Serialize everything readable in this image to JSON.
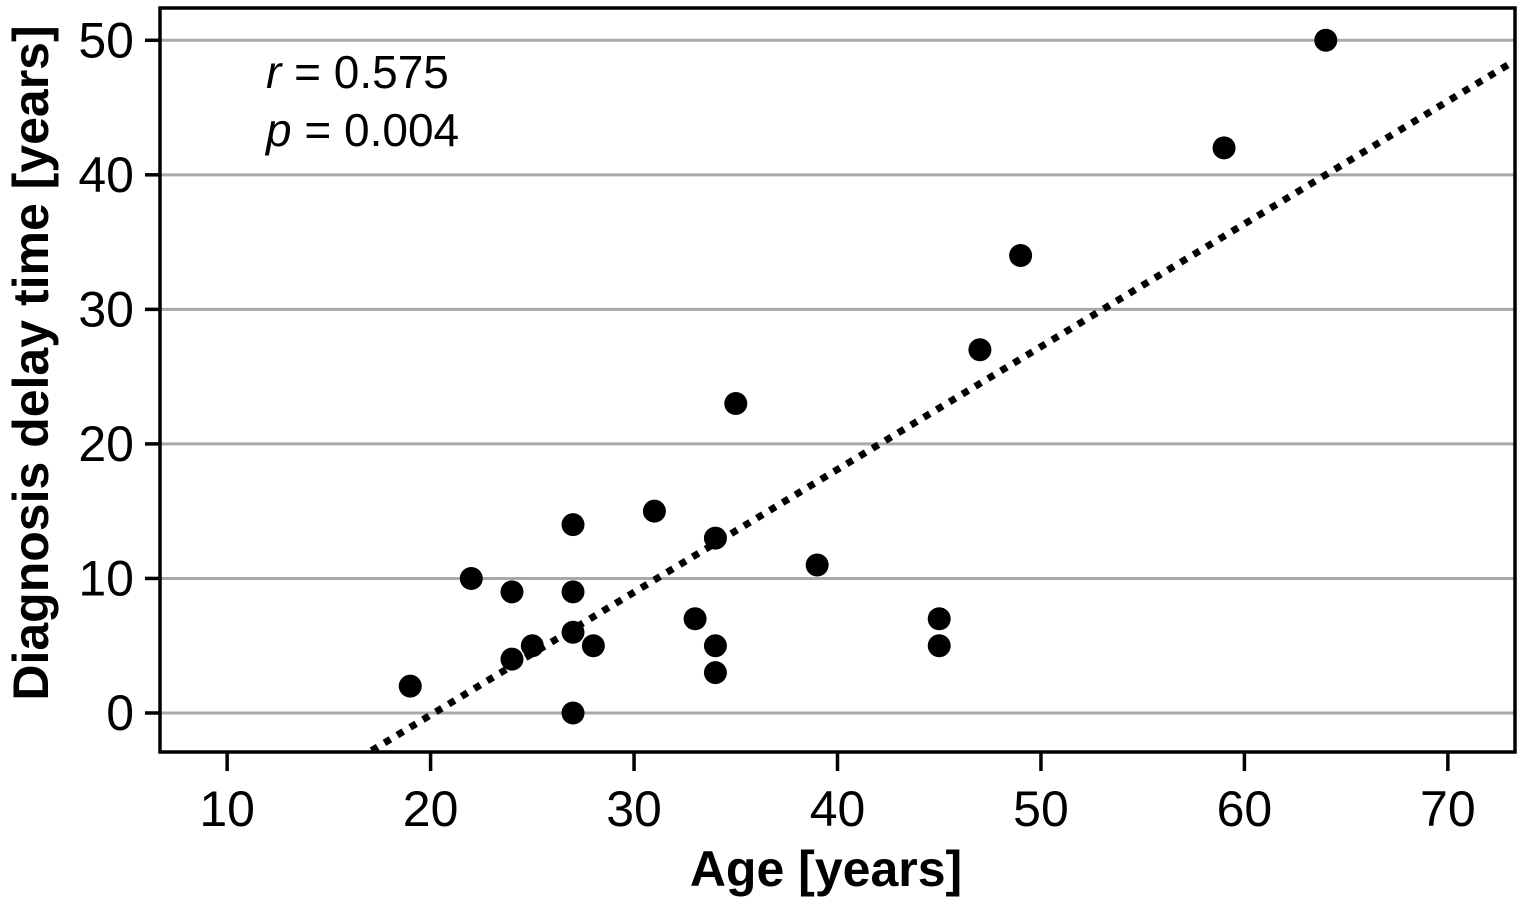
{
  "chart_data": {
    "type": "scatter",
    "title": "",
    "xlabel": "Age [years]",
    "ylabel": "Diagnosis delay time [years]",
    "xlim": [
      6.7,
      73.3
    ],
    "ylim": [
      -2.9,
      52.4
    ],
    "x_ticks": [
      10,
      20,
      30,
      40,
      50,
      60,
      70
    ],
    "y_ticks": [
      0,
      10,
      20,
      30,
      40,
      50
    ],
    "grid": "horizontal",
    "legend": "none",
    "points": [
      [
        19,
        2
      ],
      [
        22,
        10
      ],
      [
        24,
        4
      ],
      [
        24,
        9
      ],
      [
        25,
        5
      ],
      [
        27,
        0
      ],
      [
        27,
        6
      ],
      [
        27,
        9
      ],
      [
        27,
        14
      ],
      [
        28,
        5
      ],
      [
        31,
        15
      ],
      [
        33,
        7
      ],
      [
        34,
        3
      ],
      [
        34,
        5
      ],
      [
        34,
        13
      ],
      [
        35,
        23
      ],
      [
        39,
        11
      ],
      [
        45,
        5
      ],
      [
        45,
        7
      ],
      [
        47,
        27
      ],
      [
        49,
        34
      ],
      [
        59,
        42
      ],
      [
        64,
        50
      ]
    ],
    "point_radius_px": 11.5,
    "trendline": {
      "style": "dotted",
      "x1": 17.1,
      "y1": -2.8,
      "x2": 73.2,
      "y2": 48.4
    },
    "annotation": {
      "r_symbol": "r",
      "r_text": "= 0.575",
      "p_symbol": "p",
      "p_text": "= 0.004"
    },
    "colors": {
      "point": "#000000",
      "trendline": "#000000",
      "grid": "#a9a9a9",
      "axis": "#000000",
      "text": "#000000",
      "background": "#ffffff"
    }
  }
}
